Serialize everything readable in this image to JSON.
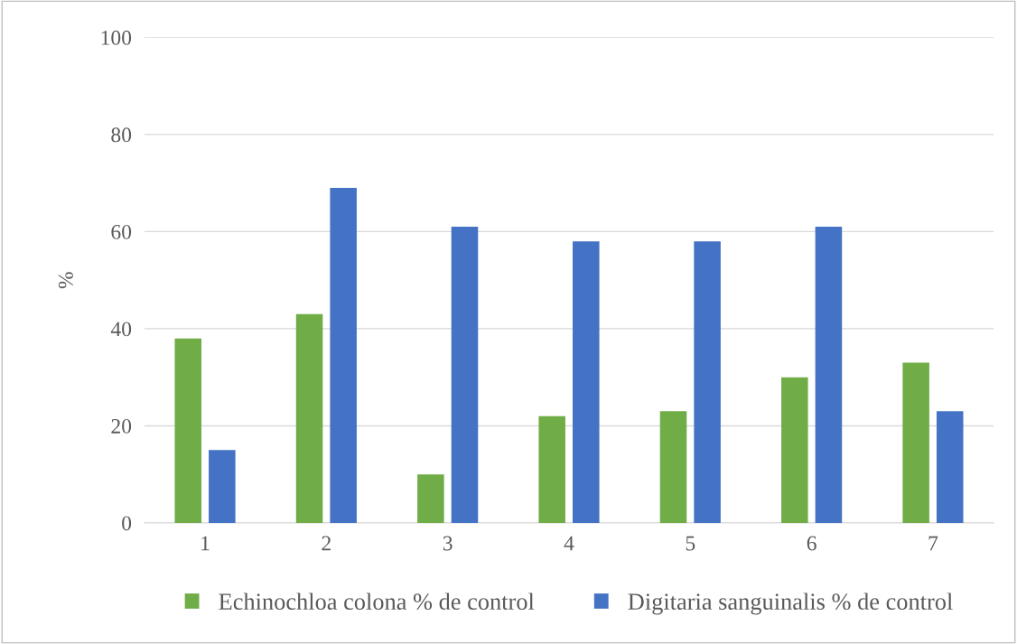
{
  "chart_data": {
    "type": "bar",
    "ylabel": "%",
    "categories": [
      "1",
      "2",
      "3",
      "4",
      "5",
      "6",
      "7"
    ],
    "series": [
      {
        "name": "Echinochloa colona % de control",
        "color": "#70ad47",
        "values": [
          38,
          43,
          10,
          22,
          23,
          30,
          33
        ]
      },
      {
        "name": "Digitaria sanguinalis % de control",
        "color": "#4472c4",
        "values": [
          15,
          69,
          61,
          58,
          58,
          61,
          23
        ]
      }
    ],
    "ylim": [
      0,
      100
    ],
    "yticks": [
      0,
      20,
      40,
      60,
      80,
      100
    ],
    "grid": "y",
    "legend": "bottom"
  }
}
